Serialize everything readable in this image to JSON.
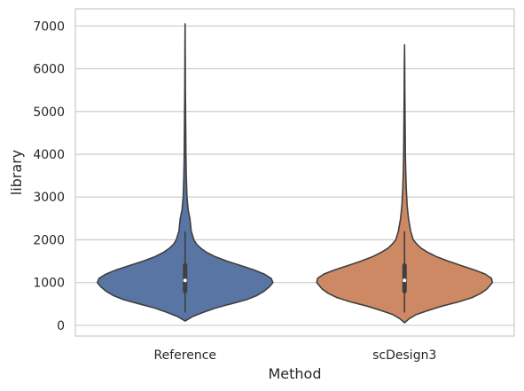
{
  "chart_data": {
    "type": "violin",
    "xlabel": "Method",
    "ylabel": "library",
    "ylim": [
      -250,
      7400
    ],
    "yticks": [
      0,
      1000,
      2000,
      3000,
      4000,
      5000,
      6000,
      7000
    ],
    "grid": "y",
    "colors": {
      "Reference": "#5975a4",
      "scDesign3": "#cc8963",
      "outline": "#3f3f3f",
      "grid": "#cccccc",
      "frame": "#cccccc"
    },
    "categories": [
      "Reference",
      "scDesign3"
    ],
    "series": [
      {
        "name": "Reference",
        "min": 100,
        "max": 7050,
        "q1": 800,
        "median": 1050,
        "q3": 1400,
        "whisker_low": 300,
        "whisker_high": 2200,
        "density_profile": [
          [
            100,
            0.0
          ],
          [
            200,
            0.08
          ],
          [
            300,
            0.2
          ],
          [
            400,
            0.34
          ],
          [
            500,
            0.52
          ],
          [
            600,
            0.7
          ],
          [
            700,
            0.82
          ],
          [
            800,
            0.9
          ],
          [
            900,
            0.96
          ],
          [
            1000,
            1.0
          ],
          [
            1100,
            0.98
          ],
          [
            1200,
            0.9
          ],
          [
            1300,
            0.78
          ],
          [
            1400,
            0.63
          ],
          [
            1500,
            0.48
          ],
          [
            1600,
            0.35
          ],
          [
            1700,
            0.25
          ],
          [
            1800,
            0.18
          ],
          [
            1900,
            0.13
          ],
          [
            2000,
            0.1
          ],
          [
            2200,
            0.07
          ],
          [
            2500,
            0.055
          ],
          [
            2700,
            0.035
          ],
          [
            3000,
            0.022
          ],
          [
            3500,
            0.014
          ],
          [
            4000,
            0.01
          ],
          [
            4500,
            0.008
          ],
          [
            5000,
            0.006
          ],
          [
            5500,
            0.004
          ],
          [
            6000,
            0.003
          ],
          [
            6500,
            0.002
          ],
          [
            7050,
            0.0
          ]
        ]
      },
      {
        "name": "scDesign3",
        "min": 60,
        "max": 6560,
        "q1": 800,
        "median": 1050,
        "q3": 1400,
        "whisker_low": 300,
        "whisker_high": 2200,
        "density_profile": [
          [
            60,
            0.0
          ],
          [
            150,
            0.05
          ],
          [
            250,
            0.13
          ],
          [
            350,
            0.27
          ],
          [
            450,
            0.43
          ],
          [
            550,
            0.62
          ],
          [
            650,
            0.77
          ],
          [
            750,
            0.87
          ],
          [
            850,
            0.94
          ],
          [
            1000,
            1.0
          ],
          [
            1100,
            0.99
          ],
          [
            1200,
            0.92
          ],
          [
            1300,
            0.79
          ],
          [
            1400,
            0.64
          ],
          [
            1500,
            0.5
          ],
          [
            1600,
            0.37
          ],
          [
            1700,
            0.27
          ],
          [
            1800,
            0.19
          ],
          [
            1900,
            0.14
          ],
          [
            2000,
            0.1
          ],
          [
            2200,
            0.07
          ],
          [
            2500,
            0.045
          ],
          [
            2800,
            0.03
          ],
          [
            3200,
            0.02
          ],
          [
            3600,
            0.014
          ],
          [
            4000,
            0.01
          ],
          [
            4500,
            0.008
          ],
          [
            5000,
            0.006
          ],
          [
            5500,
            0.004
          ],
          [
            6000,
            0.003
          ],
          [
            6560,
            0.0
          ]
        ]
      }
    ]
  }
}
